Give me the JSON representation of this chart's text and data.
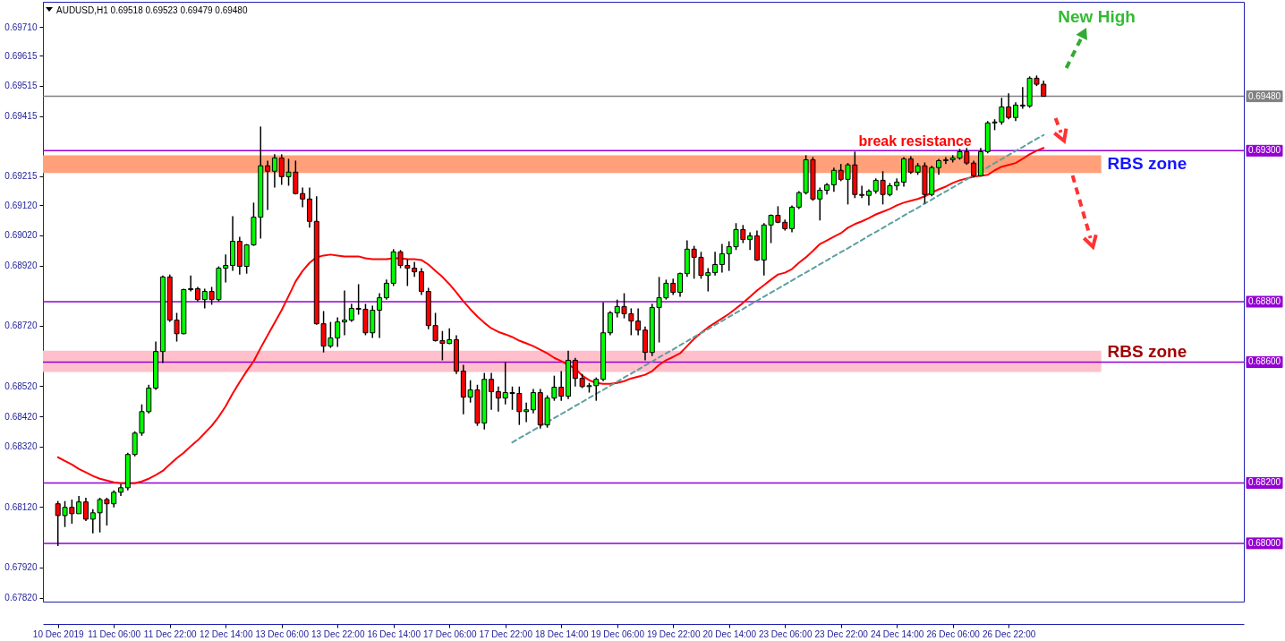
{
  "chart_data": {
    "type": "candlestick",
    "title": "AUDUSD,H1 0.69518 0.69523 0.69479 0.69480",
    "categories": [
      "10 Dec 2019",
      null,
      null,
      null,
      null,
      null,
      null,
      null,
      "11 Dec 06:00",
      null,
      null,
      null,
      null,
      null,
      null,
      null,
      "11 Dec 22:00",
      null,
      null,
      null,
      null,
      null,
      null,
      null,
      "12 Dec 14:00",
      null,
      null,
      null,
      null,
      null,
      null,
      null,
      "13 Dec 06:00",
      null,
      null,
      null,
      null,
      null,
      null,
      null,
      "13 Dec 22:00",
      null,
      null,
      null,
      null,
      null,
      null,
      null,
      "16 Dec 14:00",
      null,
      null,
      null,
      null,
      null,
      null,
      null,
      "17 Dec 06:00",
      null,
      null,
      null,
      null,
      null,
      null,
      null,
      "17 Dec 22:00",
      null,
      null,
      null,
      null,
      null,
      null,
      null,
      "18 Dec 14:00",
      null,
      null,
      null,
      null,
      null,
      null,
      null,
      "19 Dec 06:00",
      null,
      null,
      null,
      null,
      null,
      null,
      null,
      "19 Dec 22:00",
      null,
      null,
      null,
      null,
      null,
      null,
      null,
      "20 Dec 14:00",
      null,
      null,
      null,
      null,
      null,
      null,
      null,
      "23 Dec 06:00",
      null,
      null,
      null,
      null,
      null,
      null,
      null,
      "23 Dec 22:00",
      null,
      null,
      null,
      null,
      null,
      null,
      null,
      "24 Dec 14:00",
      null,
      null,
      null,
      null,
      null,
      null,
      null,
      "26 Dec 06:00",
      null,
      null,
      null,
      null,
      null,
      null,
      null,
      "26 Dec 22:00",
      null,
      null,
      null,
      null,
      null
    ],
    "ohlc": [
      [
        0.68131,
        0.6814,
        0.67991,
        0.68092
      ],
      [
        0.68092,
        0.6814,
        0.68054,
        0.68119
      ],
      [
        0.68119,
        0.68145,
        0.68065,
        0.68098
      ],
      [
        0.68098,
        0.68157,
        0.68098,
        0.68137
      ],
      [
        0.68137,
        0.68151,
        0.68074,
        0.6808
      ],
      [
        0.6808,
        0.68113,
        0.68033,
        0.68101
      ],
      [
        0.68101,
        0.68151,
        0.68036,
        0.68145
      ],
      [
        0.68145,
        0.68151,
        0.68059,
        0.68131
      ],
      [
        0.68131,
        0.68175,
        0.68119,
        0.68169
      ],
      [
        0.68169,
        0.68196,
        0.68157,
        0.68184
      ],
      [
        0.68184,
        0.683,
        0.68175,
        0.68294
      ],
      [
        0.68294,
        0.68371,
        0.68288,
        0.68365
      ],
      [
        0.68365,
        0.6846,
        0.68356,
        0.68436
      ],
      [
        0.68436,
        0.68525,
        0.6843,
        0.68514
      ],
      [
        0.68514,
        0.68668,
        0.68508,
        0.68635
      ],
      [
        0.68635,
        0.68887,
        0.68597,
        0.68882
      ],
      [
        0.68882,
        0.6889,
        0.68733,
        0.68739
      ],
      [
        0.68739,
        0.68763,
        0.68668,
        0.68694
      ],
      [
        0.68694,
        0.68843,
        0.68692,
        0.6884
      ],
      [
        0.6884,
        0.68887,
        0.68834,
        0.68843
      ],
      [
        0.68843,
        0.68849,
        0.68801,
        0.68807
      ],
      [
        0.68807,
        0.68843,
        0.68778,
        0.68834
      ],
      [
        0.68834,
        0.68849,
        0.6879,
        0.68807
      ],
      [
        0.68807,
        0.68917,
        0.68801,
        0.68911
      ],
      [
        0.68911,
        0.68956,
        0.68864,
        0.6892
      ],
      [
        0.6892,
        0.69083,
        0.68902,
        0.69
      ],
      [
        0.69,
        0.69015,
        0.6889,
        0.68917
      ],
      [
        0.68917,
        0.68991,
        0.68893,
        0.68988
      ],
      [
        0.68988,
        0.69128,
        0.68985,
        0.6908
      ],
      [
        0.6908,
        0.6938,
        0.69009,
        0.6925
      ],
      [
        0.6925,
        0.69267,
        0.69104,
        0.69232
      ],
      [
        0.69232,
        0.69288,
        0.69178,
        0.69276
      ],
      [
        0.69276,
        0.69288,
        0.69187,
        0.69214
      ],
      [
        0.69214,
        0.69273,
        0.69184,
        0.69229
      ],
      [
        0.69229,
        0.69267,
        0.69155,
        0.69158
      ],
      [
        0.69158,
        0.69178,
        0.69113,
        0.6914
      ],
      [
        0.6914,
        0.69178,
        0.69045,
        0.69066
      ],
      [
        0.69066,
        0.69149,
        0.68724,
        0.68727
      ],
      [
        0.68727,
        0.68769,
        0.68632,
        0.68653
      ],
      [
        0.68653,
        0.68733,
        0.68647,
        0.6868
      ],
      [
        0.6868,
        0.68748,
        0.6865,
        0.68733
      ],
      [
        0.68733,
        0.68837,
        0.68689,
        0.68739
      ],
      [
        0.68739,
        0.68793,
        0.68733,
        0.68778
      ],
      [
        0.68778,
        0.68858,
        0.68757,
        0.68775
      ],
      [
        0.68775,
        0.68793,
        0.68689,
        0.68697
      ],
      [
        0.68697,
        0.68787,
        0.6868,
        0.68772
      ],
      [
        0.68772,
        0.68828,
        0.6868,
        0.68813
      ],
      [
        0.68813,
        0.68873,
        0.68807,
        0.68861
      ],
      [
        0.68861,
        0.68974,
        0.68852,
        0.68965
      ],
      [
        0.68965,
        0.68971,
        0.68911,
        0.6892
      ],
      [
        0.6892,
        0.68941,
        0.68852,
        0.68911
      ],
      [
        0.68911,
        0.68932,
        0.68882,
        0.68899
      ],
      [
        0.68899,
        0.68911,
        0.68822,
        0.68834
      ],
      [
        0.68834,
        0.68846,
        0.68709,
        0.68721
      ],
      [
        0.68721,
        0.68763,
        0.68668,
        0.68671
      ],
      [
        0.68671,
        0.68703,
        0.68606,
        0.68662
      ],
      [
        0.68662,
        0.68712,
        0.68659,
        0.68674
      ],
      [
        0.68674,
        0.68689,
        0.68561,
        0.6857
      ],
      [
        0.6857,
        0.68591,
        0.68427,
        0.68484
      ],
      [
        0.68484,
        0.6854,
        0.68466,
        0.68508
      ],
      [
        0.68508,
        0.68525,
        0.68389,
        0.68398
      ],
      [
        0.68398,
        0.68564,
        0.68377,
        0.68543
      ],
      [
        0.68543,
        0.68564,
        0.68442,
        0.68502
      ],
      [
        0.68502,
        0.68519,
        0.68436,
        0.68481
      ],
      [
        0.68481,
        0.686,
        0.6846,
        0.68499
      ],
      [
        0.68499,
        0.68519,
        0.68442,
        0.68496
      ],
      [
        0.68496,
        0.68519,
        0.68392,
        0.68436
      ],
      [
        0.68436,
        0.68466,
        0.68401,
        0.68442
      ],
      [
        0.68442,
        0.68511,
        0.6843,
        0.68499
      ],
      [
        0.68499,
        0.68511,
        0.6838,
        0.68392
      ],
      [
        0.68392,
        0.6849,
        0.68383,
        0.68481
      ],
      [
        0.68481,
        0.68555,
        0.68472,
        0.68517
      ],
      [
        0.68517,
        0.6857,
        0.68472,
        0.68487
      ],
      [
        0.68487,
        0.68638,
        0.68478,
        0.68606
      ],
      [
        0.68606,
        0.68614,
        0.68519,
        0.68546
      ],
      [
        0.68546,
        0.68561,
        0.68514,
        0.68519
      ],
      [
        0.68519,
        0.68531,
        0.68499,
        0.68522
      ],
      [
        0.68522,
        0.68549,
        0.68472,
        0.68543
      ],
      [
        0.68543,
        0.68798,
        0.68537,
        0.68697
      ],
      [
        0.68697,
        0.68769,
        0.68689,
        0.68763
      ],
      [
        0.68763,
        0.68807,
        0.68748,
        0.68784
      ],
      [
        0.68784,
        0.68828,
        0.68745,
        0.6876
      ],
      [
        0.6876,
        0.68778,
        0.68689,
        0.68736
      ],
      [
        0.68736,
        0.68778,
        0.68689,
        0.68706
      ],
      [
        0.68706,
        0.68718,
        0.68606,
        0.68632
      ],
      [
        0.68632,
        0.68793,
        0.6862,
        0.68781
      ],
      [
        0.68781,
        0.68882,
        0.68665,
        0.68813
      ],
      [
        0.68813,
        0.68873,
        0.68807,
        0.68861
      ],
      [
        0.68861,
        0.68876,
        0.68822,
        0.68831
      ],
      [
        0.68831,
        0.68896,
        0.68816,
        0.68893
      ],
      [
        0.68893,
        0.69003,
        0.68882,
        0.68974
      ],
      [
        0.68974,
        0.68985,
        0.68876,
        0.68947
      ],
      [
        0.68947,
        0.68965,
        0.68876,
        0.68887
      ],
      [
        0.68887,
        0.68911,
        0.68834,
        0.68896
      ],
      [
        0.68896,
        0.68965,
        0.68887,
        0.68923
      ],
      [
        0.68923,
        0.68991,
        0.68896,
        0.68959
      ],
      [
        0.68959,
        0.69,
        0.68902,
        0.68982
      ],
      [
        0.68982,
        0.6906,
        0.68971,
        0.69039
      ],
      [
        0.69039,
        0.69054,
        0.68994,
        0.69006
      ],
      [
        0.69006,
        0.6903,
        0.68971,
        0.69018
      ],
      [
        0.69018,
        0.69036,
        0.68935,
        0.68938
      ],
      [
        0.68938,
        0.6906,
        0.68887,
        0.69054
      ],
      [
        0.69054,
        0.69089,
        0.68994,
        0.69086
      ],
      [
        0.69086,
        0.69116,
        0.6906,
        0.69063
      ],
      [
        0.69063,
        0.69072,
        0.69036,
        0.69042
      ],
      [
        0.69042,
        0.69119,
        0.6903,
        0.69113
      ],
      [
        0.69113,
        0.69166,
        0.69107,
        0.69161
      ],
      [
        0.69161,
        0.69285,
        0.69155,
        0.6927
      ],
      [
        0.6927,
        0.69279,
        0.69134,
        0.6914
      ],
      [
        0.6914,
        0.69178,
        0.69069,
        0.69169
      ],
      [
        0.69169,
        0.69193,
        0.69155,
        0.69187
      ],
      [
        0.69187,
        0.69244,
        0.69164,
        0.69235
      ],
      [
        0.69235,
        0.69256,
        0.69199,
        0.69205
      ],
      [
        0.69205,
        0.69259,
        0.69122,
        0.69253
      ],
      [
        0.69253,
        0.69297,
        0.69143,
        0.69155
      ],
      [
        0.69155,
        0.69184,
        0.69143,
        0.69152
      ],
      [
        0.69152,
        0.69172,
        0.69119,
        0.69166
      ],
      [
        0.69166,
        0.69208,
        0.69158,
        0.69202
      ],
      [
        0.69202,
        0.69232,
        0.69122,
        0.69155
      ],
      [
        0.69155,
        0.69193,
        0.69149,
        0.69184
      ],
      [
        0.69184,
        0.69208,
        0.69169,
        0.69196
      ],
      [
        0.69196,
        0.69279,
        0.69181,
        0.69273
      ],
      [
        0.69273,
        0.69282,
        0.69223,
        0.69229
      ],
      [
        0.69229,
        0.69259,
        0.6922,
        0.6925
      ],
      [
        0.6925,
        0.69261,
        0.69125,
        0.69155
      ],
      [
        0.69155,
        0.6925,
        0.69149,
        0.69244
      ],
      [
        0.69244,
        0.69273,
        0.6922,
        0.69267
      ],
      [
        0.69267,
        0.69279,
        0.69256,
        0.6927
      ],
      [
        0.6927,
        0.69285,
        0.69261,
        0.69276
      ],
      [
        0.69276,
        0.69306,
        0.6927,
        0.69297
      ],
      [
        0.69297,
        0.69309,
        0.69253,
        0.69259
      ],
      [
        0.69259,
        0.69267,
        0.69211,
        0.69217
      ],
      [
        0.69217,
        0.69309,
        0.69214,
        0.69297
      ],
      [
        0.69297,
        0.69398,
        0.69291,
        0.69392
      ],
      [
        0.69392,
        0.69404,
        0.69368,
        0.69395
      ],
      [
        0.69395,
        0.69475,
        0.69386,
        0.69445
      ],
      [
        0.69445,
        0.6949,
        0.69404,
        0.6941
      ],
      [
        0.6941,
        0.6946,
        0.69398,
        0.69451
      ],
      [
        0.69451,
        0.69511,
        0.69439,
        0.69448
      ],
      [
        0.69448,
        0.69546,
        0.69442,
        0.6954
      ],
      [
        0.6954,
        0.69549,
        0.69514,
        0.6952
      ],
      [
        0.6952,
        0.69532,
        0.69479,
        0.6948
      ]
    ],
    "colors": [
      "#ff0000",
      "#00ff00",
      "#ff0000",
      "#00ff00",
      "#ff0000",
      "#00ff00",
      "#00ff00",
      "#ff0000",
      "#00ff00",
      "#00ff00",
      "#00ff00",
      "#00ff00",
      "#00ff00",
      "#00ff00",
      "#00ff00",
      "#00ff00",
      "#ff0000",
      "#ff0000",
      "#00ff00",
      "#00ff00",
      "#ff0000",
      "#00ff00",
      "#ff0000",
      "#00ff00",
      "#00ff00",
      "#00ff00",
      "#ff0000",
      "#00ff00",
      "#00ff00",
      "#00ff00",
      "#ff0000",
      "#00ff00",
      "#ff0000",
      "#00ff00",
      "#ff0000",
      "#ff0000",
      "#ff0000",
      "#ff0000",
      "#ff0000",
      "#00ff00",
      "#00ff00",
      "#00ff00",
      "#00ff00",
      "#ff0000",
      "#ff0000",
      "#00ff00",
      "#00ff00",
      "#00ff00",
      "#00ff00",
      "#ff0000",
      "#ff0000",
      "#ff0000",
      "#ff0000",
      "#ff0000",
      "#ff0000",
      "#ff0000",
      "#00ff00",
      "#ff0000",
      "#ff0000",
      "#00ff00",
      "#ff0000",
      "#00ff00",
      "#ff0000",
      "#ff0000",
      "#00ff00",
      "#ff0000",
      "#ff0000",
      "#00ff00",
      "#00ff00",
      "#ff0000",
      "#00ff00",
      "#00ff00",
      "#ff0000",
      "#00ff00",
      "#ff0000",
      "#ff0000",
      "#00ff00",
      "#00ff00",
      "#00ff00",
      "#00ff00",
      "#00ff00",
      "#ff0000",
      "#ff0000",
      "#ff0000",
      "#ff0000",
      "#00ff00",
      "#00ff00",
      "#00ff00",
      "#ff0000",
      "#00ff00",
      "#00ff00",
      "#ff0000",
      "#ff0000",
      "#00ff00",
      "#00ff00",
      "#00ff00",
      "#00ff00",
      "#00ff00",
      "#ff0000",
      "#00ff00",
      "#ff0000",
      "#00ff00",
      "#00ff00",
      "#ff0000",
      "#ff0000",
      "#00ff00",
      "#00ff00",
      "#00ff00",
      "#ff0000",
      "#00ff00",
      "#00ff00",
      "#00ff00",
      "#ff0000",
      "#00ff00",
      "#ff0000",
      "#ff0000",
      "#00ff00",
      "#00ff00",
      "#ff0000",
      "#00ff00",
      "#00ff00",
      "#00ff00",
      "#ff0000",
      "#00ff00",
      "#ff0000",
      "#00ff00",
      "#00ff00",
      "#00ff00",
      "#00ff00",
      "#00ff00",
      "#ff0000",
      "#ff0000",
      "#00ff00",
      "#00ff00",
      "#00ff00",
      "#00ff00",
      "#ff0000",
      "#00ff00",
      "#ff0000",
      "#00ff00",
      "#ff0000",
      "#ff0000"
    ],
    "series": [
      {
        "type": "line",
        "color": "#ff0000",
        "values": [
          0.68285,
          0.68273,
          0.68261,
          0.68246,
          0.68235,
          0.68223,
          0.68214,
          0.68208,
          0.68202,
          0.68199,
          0.68199,
          0.68199,
          0.68205,
          0.68214,
          0.68226,
          0.6824,
          0.68261,
          0.68282,
          0.683,
          0.68321,
          0.68341,
          0.68365,
          0.68389,
          0.68419,
          0.68454,
          0.68496,
          0.68534,
          0.6857,
          0.68603,
          0.68647,
          0.68689,
          0.6873,
          0.68772,
          0.68819,
          0.68867,
          0.68902,
          0.68929,
          0.68947,
          0.68953,
          0.68956,
          0.68953,
          0.6895,
          0.6895,
          0.6895,
          0.68944,
          0.68941,
          0.68941,
          0.68941,
          0.68944,
          0.68944,
          0.68941,
          0.68941,
          0.68938,
          0.68923,
          0.68902,
          0.68882,
          0.68858,
          0.68831,
          0.68801,
          0.68775,
          0.68751,
          0.6873,
          0.68712,
          0.687,
          0.68692,
          0.68683,
          0.68671,
          0.68662,
          0.68653,
          0.68641,
          0.68629,
          0.68614,
          0.68603,
          0.68591,
          0.68579,
          0.68555,
          0.6854,
          0.68531,
          0.68528,
          0.68528,
          0.68531,
          0.68537,
          0.68546,
          0.68552,
          0.68558,
          0.6857,
          0.68591,
          0.68606,
          0.68617,
          0.68629,
          0.68653,
          0.68677,
          0.68697,
          0.68715,
          0.6873,
          0.68745,
          0.6876,
          0.68778,
          0.68796,
          0.68816,
          0.68837,
          0.68855,
          0.68873,
          0.6889,
          0.68896,
          0.68908,
          0.68929,
          0.68947,
          0.68968,
          0.68991,
          0.69003,
          0.69015,
          0.69027,
          0.69045,
          0.69057,
          0.69066,
          0.69077,
          0.69089,
          0.69098,
          0.69107,
          0.69119,
          0.69128,
          0.69134,
          0.6914,
          0.69149,
          0.69161,
          0.69172,
          0.69181,
          0.69193,
          0.69202,
          0.69208,
          0.69214,
          0.69217,
          0.6922,
          0.69235,
          0.69247,
          0.69253,
          0.69259,
          0.69273,
          0.69288,
          0.693,
          0.69309
        ]
      },
      {
        "type": "line",
        "color": "#5f9ea0",
        "line_style": "dashed",
        "values": [
          null,
          null,
          null,
          null,
          null,
          null,
          null,
          null,
          null,
          null,
          null,
          null,
          null,
          null,
          null,
          null,
          null,
          null,
          null,
          null,
          null,
          null,
          null,
          null,
          null,
          null,
          null,
          null,
          null,
          null,
          null,
          null,
          null,
          null,
          null,
          null,
          null,
          null,
          null,
          null,
          null,
          null,
          null,
          null,
          null,
          null,
          null,
          null,
          null,
          null,
          null,
          null,
          null,
          null,
          null,
          null,
          null,
          null,
          null,
          null,
          null,
          null,
          null,
          null,
          null,
          0.68334,
          0.68348,
          0.68361,
          0.68374,
          0.68388,
          0.68401,
          0.68415,
          0.68428,
          0.68441,
          0.68455,
          0.68468,
          0.68482,
          0.68495,
          0.68508,
          0.68522,
          0.68535,
          0.68549,
          0.68562,
          0.68575,
          0.68589,
          0.68602,
          0.68616,
          0.68629,
          0.68642,
          0.68656,
          0.68669,
          0.68683,
          0.68696,
          0.68709,
          0.68723,
          0.68736,
          0.6875,
          0.68763,
          0.68776,
          0.6879,
          0.68803,
          0.68817,
          0.6883,
          0.68843,
          0.68857,
          0.6887,
          0.68884,
          0.68897,
          0.6891,
          0.68924,
          0.68937,
          0.68951,
          0.68964,
          0.68977,
          0.68991,
          0.69004,
          0.69018,
          0.69031,
          0.69044,
          0.69058,
          0.69071,
          0.69085,
          0.69098,
          0.69111,
          0.69125,
          0.69138,
          0.69152,
          0.69165,
          0.69178,
          0.69192,
          0.69205,
          0.69219,
          0.69232,
          0.69245,
          0.69259,
          0.69272,
          0.69286,
          0.69299,
          0.69312,
          0.69326,
          0.69339,
          0.69352
        ]
      }
    ],
    "ylim": [
      0.67807,
      0.69793
    ],
    "yticks": [
      {
        "value": 0.6782,
        "label": "0.67820"
      },
      {
        "value": 0.6792,
        "label": "0.67920"
      },
      {
        "value": 0.6812,
        "label": "0.68120"
      },
      {
        "value": 0.6832,
        "label": "0.68320"
      },
      {
        "value": 0.6842,
        "label": "0.68420"
      },
      {
        "value": 0.6852,
        "label": "0.68520"
      },
      {
        "value": 0.6872,
        "label": "0.68720"
      },
      {
        "value": 0.6892,
        "label": "0.68920"
      },
      {
        "value": 0.6902,
        "label": "0.69020"
      },
      {
        "value": 0.6912,
        "label": "0.69120"
      },
      0.69215,
      0.69415,
      0.69515,
      0.69615,
      {
        "value": 0.6971,
        "label": "0.69710"
      }
    ],
    "ref_lines": [
      {
        "axis": "y",
        "value": 0.6948,
        "label": "0.69480",
        "color": "#808080"
      },
      {
        "axis": "y",
        "value": 0.693,
        "label": "0.69300",
        "color": "#9400d3"
      },
      {
        "axis": "y",
        "value": 0.688,
        "label": "0.68800",
        "color": "#9400d3"
      },
      {
        "axis": "y",
        "value": 0.686,
        "label": "0.68600",
        "color": "#9400d3"
      },
      {
        "axis": "y",
        "value": 0.682,
        "label": "0.68200",
        "color": "#9400d3"
      },
      {
        "axis": "y",
        "value": 0.68,
        "label": "0.68000",
        "color": "#9400d3"
      }
    ],
    "bands": [
      {
        "axis": "y",
        "from": 0.69226,
        "to": 0.69285,
        "label": "RBS zone",
        "color": "#ffa07a"
      },
      {
        "axis": "y",
        "from": 0.68567,
        "to": 0.68638,
        "label": "RBS zone",
        "color": "#ffc0cb"
      }
    ],
    "annotations": [
      "New High",
      "break resistance"
    ]
  }
}
